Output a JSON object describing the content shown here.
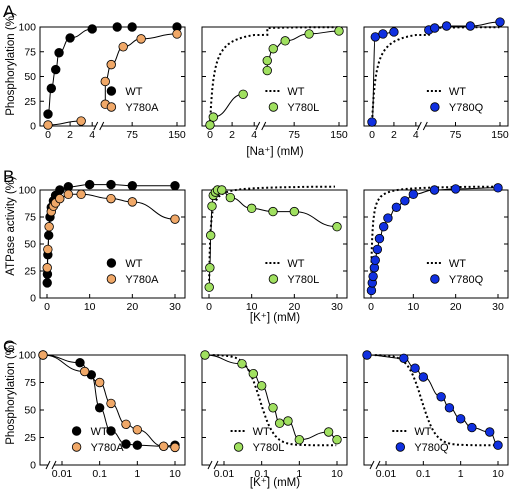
{
  "panels": [
    {
      "letter": "A",
      "ylabel": "Phosphorylation (%)",
      "xlabel": "[Na⁺] (mM)"
    },
    {
      "letter": "B",
      "ylabel": "ATPase activity (%)",
      "xlabel": "[K⁺] (mM)"
    },
    {
      "letter": "C",
      "ylabel": "Phosphorylation (%)",
      "xlabel": "[K⁺] (mM)"
    }
  ],
  "colors": {
    "wt": "#000000",
    "y780a": "#f0a868",
    "y780l": "#a0e060",
    "y780q": "#1030e0"
  },
  "chart_data": [
    {
      "id": "A1",
      "type": "scatter",
      "ylim": [
        0,
        100
      ],
      "yticks": [
        0,
        25,
        50,
        75,
        100
      ],
      "xticks": [
        "0",
        "2",
        "4",
        "75",
        "150"
      ],
      "series": [
        {
          "name": "WT",
          "color": "#000000",
          "style": "solid-fit",
          "points": [
            [
              0,
              12
            ],
            [
              0.3,
              38
            ],
            [
              0.7,
              57
            ],
            [
              1,
              74
            ],
            [
              2,
              89
            ],
            [
              4,
              98
            ],
            [
              50,
              100
            ],
            [
              75,
              100
            ],
            [
              150,
              100
            ]
          ]
        },
        {
          "name": "Y780A",
          "color": "#f0a868",
          "style": "solid-fit",
          "points": [
            [
              0,
              1
            ],
            [
              3,
              5
            ],
            [
              15,
              22
            ],
            [
              25,
              45
            ],
            [
              40,
              62
            ],
            [
              60,
              80
            ],
            [
              90,
              88
            ],
            [
              150,
              93
            ]
          ]
        }
      ]
    },
    {
      "id": "A2",
      "type": "scatter",
      "ylim": [
        0,
        100
      ],
      "xticks": [
        "0",
        "2",
        "4",
        "75",
        "150"
      ],
      "series": [
        {
          "name": "WT",
          "color": "#000000",
          "style": "dotted-fit",
          "points": []
        },
        {
          "name": "Y780L",
          "color": "#a0e060",
          "style": "solid-fit",
          "points": [
            [
              0,
              1
            ],
            [
              0.3,
              9
            ],
            [
              3,
              32
            ],
            [
              15,
              56
            ],
            [
              25,
              66
            ],
            [
              40,
              78
            ],
            [
              60,
              86
            ],
            [
              100,
              93
            ],
            [
              150,
              96
            ]
          ]
        }
      ]
    },
    {
      "id": "A3",
      "type": "scatter",
      "ylim": [
        0,
        100
      ],
      "xticks": [
        "0",
        "2",
        "4",
        "75",
        "150"
      ],
      "series": [
        {
          "name": "WT",
          "color": "#000000",
          "style": "dotted-fit",
          "points": []
        },
        {
          "name": "Y780Q",
          "color": "#1030e0",
          "style": "solid-fit",
          "points": [
            [
              0,
              4
            ],
            [
              0.3,
              90
            ],
            [
              1,
              93
            ],
            [
              2,
              95
            ],
            [
              15,
              97
            ],
            [
              40,
              99
            ],
            [
              60,
              101
            ],
            [
              100,
              101
            ],
            [
              150,
              105
            ]
          ]
        }
      ]
    },
    {
      "id": "B1",
      "type": "scatter",
      "ylim": [
        0,
        100
      ],
      "yticks": [
        0,
        25,
        50,
        75,
        100
      ],
      "xticks": [
        "0",
        "10",
        "20",
        "30"
      ],
      "series": [
        {
          "name": "WT",
          "color": "#000000",
          "style": "solid-fit",
          "points": [
            [
              0.05,
              14
            ],
            [
              0.1,
              22
            ],
            [
              0.2,
              40
            ],
            [
              0.4,
              58
            ],
            [
              0.7,
              75
            ],
            [
              1,
              84
            ],
            [
              1.5,
              90
            ],
            [
              2,
              95
            ],
            [
              3,
              100
            ],
            [
              5,
              103
            ],
            [
              10,
              105
            ],
            [
              15,
              105
            ],
            [
              20,
              104
            ],
            [
              30,
              104
            ]
          ]
        },
        {
          "name": "Y780A",
          "color": "#f0a868",
          "style": "solid-fit",
          "points": [
            [
              0.05,
              28
            ],
            [
              0.2,
              45
            ],
            [
              0.5,
              66
            ],
            [
              1,
              80
            ],
            [
              1.5,
              85
            ],
            [
              2,
              88
            ],
            [
              3,
              92
            ],
            [
              5,
              96
            ],
            [
              8,
              96
            ],
            [
              15,
              92
            ],
            [
              20,
              89
            ],
            [
              30,
              73
            ]
          ]
        }
      ]
    },
    {
      "id": "B2",
      "type": "scatter",
      "ylim": [
        0,
        100
      ],
      "xticks": [
        "0",
        "10",
        "20",
        "30"
      ],
      "series": [
        {
          "name": "WT",
          "color": "#000000",
          "style": "dotted-fit",
          "points": []
        },
        {
          "name": "Y780L",
          "color": "#a0e060",
          "style": "solid-fit",
          "points": [
            [
              0.05,
              10
            ],
            [
              0.2,
              28
            ],
            [
              0.4,
              58
            ],
            [
              0.7,
              85
            ],
            [
              1,
              95
            ],
            [
              1.5,
              98
            ],
            [
              2,
              100
            ],
            [
              3,
              100
            ],
            [
              5,
              93
            ],
            [
              10,
              83
            ],
            [
              15,
              80
            ],
            [
              20,
              80
            ],
            [
              30,
              66
            ]
          ]
        }
      ]
    },
    {
      "id": "B3",
      "type": "scatter",
      "ylim": [
        0,
        100
      ],
      "xticks": [
        "0",
        "10",
        "20",
        "30"
      ],
      "series": [
        {
          "name": "WT",
          "color": "#000000",
          "style": "dotted-fit",
          "points": []
        },
        {
          "name": "Y780Q",
          "color": "#1030e0",
          "style": "solid-fit",
          "points": [
            [
              0.1,
              7
            ],
            [
              0.3,
              14
            ],
            [
              0.5,
              20
            ],
            [
              0.8,
              28
            ],
            [
              1,
              35
            ],
            [
              1.5,
              45
            ],
            [
              2,
              55
            ],
            [
              3,
              66
            ],
            [
              4,
              74
            ],
            [
              6,
              84
            ],
            [
              8,
              90
            ],
            [
              10,
              96
            ],
            [
              15,
              100
            ],
            [
              20,
              101
            ],
            [
              30,
              102
            ]
          ]
        }
      ]
    },
    {
      "id": "C1",
      "type": "scatter",
      "ylim": [
        0,
        100
      ],
      "yticks": [
        0,
        25,
        50,
        75,
        100
      ],
      "xscale": "log",
      "xticks": [
        "0.01",
        "0.1",
        "1",
        "10"
      ],
      "series": [
        {
          "name": "WT",
          "color": "#000000",
          "style": "solid-fit",
          "points": [
            [
              0.005,
              100
            ],
            [
              0.03,
              93
            ],
            [
              0.06,
              82
            ],
            [
              0.1,
              52
            ],
            [
              0.2,
              31
            ],
            [
              0.5,
              19
            ],
            [
              1,
              18
            ],
            [
              5,
              17
            ],
            [
              10,
              18
            ]
          ]
        },
        {
          "name": "Y780A",
          "color": "#f0a868",
          "style": "solid-fit",
          "points": [
            [
              0.005,
              100
            ],
            [
              0.04,
              85
            ],
            [
              0.1,
              75
            ],
            [
              0.2,
              56
            ],
            [
              0.5,
              37
            ],
            [
              1,
              32
            ],
            [
              5,
              17
            ],
            [
              10,
              16
            ]
          ]
        }
      ]
    },
    {
      "id": "C2",
      "type": "scatter",
      "ylim": [
        0,
        100
      ],
      "xscale": "log",
      "xticks": [
        "0.01",
        "0.1",
        "1",
        "10"
      ],
      "series": [
        {
          "name": "WT",
          "color": "#000000",
          "style": "dotted-fit",
          "points": []
        },
        {
          "name": "Y780L",
          "color": "#a0e060",
          "style": "solid-fit",
          "points": [
            [
              0.005,
              100
            ],
            [
              0.03,
              92
            ],
            [
              0.06,
              83
            ],
            [
              0.1,
              72
            ],
            [
              0.2,
              52
            ],
            [
              0.3,
              38
            ],
            [
              0.5,
              40
            ],
            [
              1,
              23
            ],
            [
              6,
              30
            ],
            [
              10,
              23
            ]
          ]
        }
      ]
    },
    {
      "id": "C3",
      "type": "scatter",
      "ylim": [
        0,
        100
      ],
      "xscale": "log",
      "xticks": [
        "0.01",
        "0.1",
        "1",
        "10"
      ],
      "series": [
        {
          "name": "WT",
          "color": "#000000",
          "style": "dotted-fit",
          "points": []
        },
        {
          "name": "Y780Q",
          "color": "#1030e0",
          "style": "solid-fit",
          "points": [
            [
              0.005,
              100
            ],
            [
              0.03,
              97
            ],
            [
              0.06,
              88
            ],
            [
              0.1,
              80
            ],
            [
              0.3,
              62
            ],
            [
              0.5,
              52
            ],
            [
              1,
              42
            ],
            [
              2,
              34
            ],
            [
              6,
              30
            ],
            [
              10,
              18
            ]
          ]
        }
      ]
    }
  ]
}
